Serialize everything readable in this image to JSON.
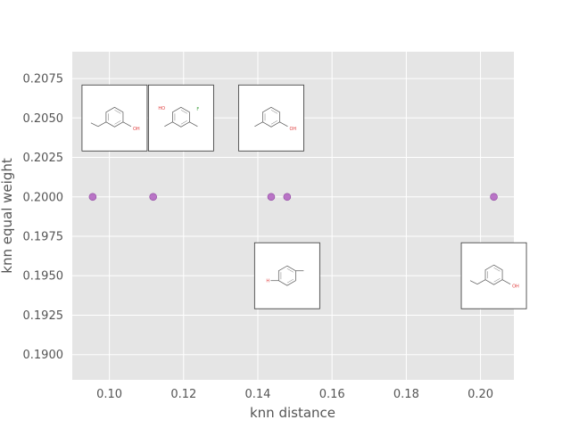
{
  "chart_data": {
    "type": "scatter",
    "title": "",
    "xlabel": "knn distance",
    "ylabel": "knn equal weight",
    "xlim": [
      0.09,
      0.209
    ],
    "ylim": [
      0.1884,
      0.2092
    ],
    "x_ticks": [
      0.1,
      0.12,
      0.14,
      0.16,
      0.18,
      0.2
    ],
    "x_tick_labels": [
      "0.10",
      "0.12",
      "0.14",
      "0.16",
      "0.18",
      "0.20"
    ],
    "y_ticks": [
      0.19,
      0.1925,
      0.195,
      0.1975,
      0.2,
      0.2025,
      0.205,
      0.2075
    ],
    "y_tick_labels": [
      "0.1900",
      "0.1925",
      "0.1950",
      "0.1975",
      "0.2000",
      "0.2025",
      "0.2050",
      "0.2075"
    ],
    "grid": true,
    "background": "#e5e5e5",
    "grid_color": "#ffffff",
    "marker_color": "#b05fbf",
    "points": [
      {
        "x": 0.0955,
        "y": 0.2
      },
      {
        "x": 0.1118,
        "y": 0.2
      },
      {
        "x": 0.1436,
        "y": 0.2
      },
      {
        "x": 0.1479,
        "y": 0.2
      },
      {
        "x": 0.2036,
        "y": 0.2
      }
    ],
    "annotations": [
      {
        "type": "molecule-image",
        "x": 0.1014,
        "y": 0.205,
        "atom_label": "OH",
        "label_color": "#e04040"
      },
      {
        "type": "molecule-image",
        "x": 0.1193,
        "y": 0.205,
        "atom_label": "F",
        "label_color": "#40a040",
        "second_label": "HO",
        "second_label_color": "#e04040"
      },
      {
        "type": "molecule-image",
        "x": 0.1436,
        "y": 0.205,
        "atom_label": "OH",
        "label_color": "#e04040"
      },
      {
        "type": "molecule-image",
        "x": 0.1479,
        "y": 0.195,
        "atom_label": "H",
        "label_color": "#e04040"
      },
      {
        "type": "molecule-image",
        "x": 0.2036,
        "y": 0.195,
        "atom_label": "OH",
        "label_color": "#e04040"
      }
    ]
  }
}
